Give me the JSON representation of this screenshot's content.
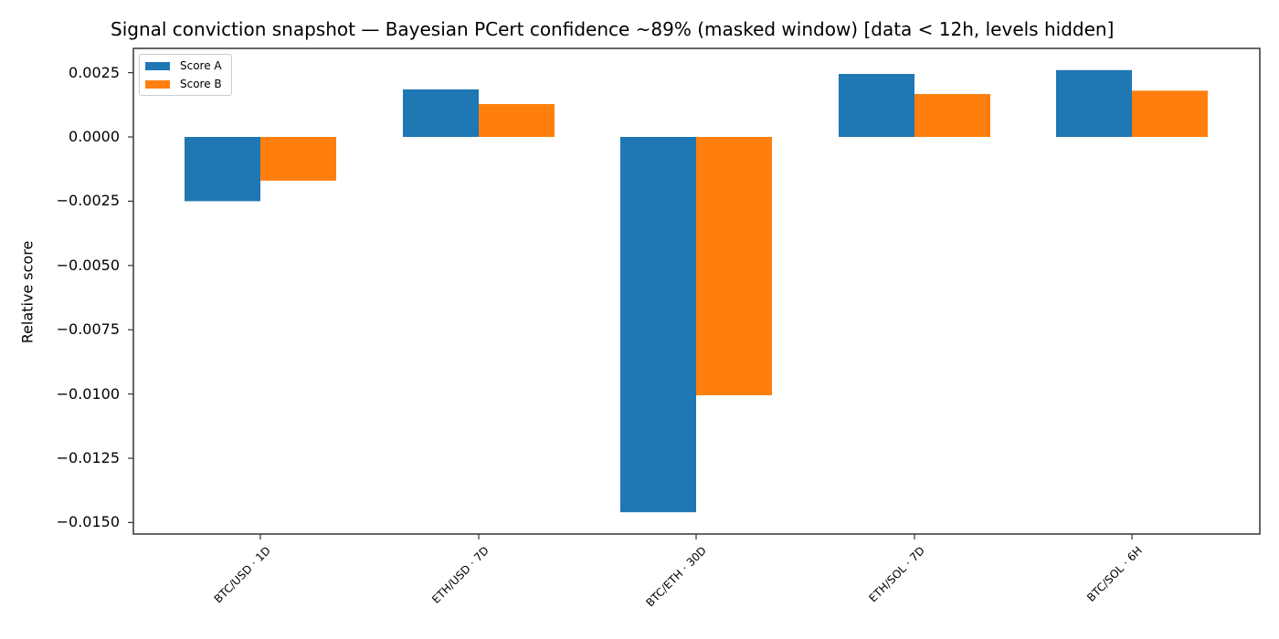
{
  "chart_data": {
    "type": "bar",
    "title": "Signal conviction snapshot — Bayesian PCert confidence ~89% (masked window) [data < 12h, levels hidden]",
    "xlabel": "",
    "ylabel": "Relative score",
    "categories": [
      "BTC/USD · 1D",
      "ETH/USD · 7D",
      "BTC/ETH · 30D",
      "ETH/SOL · 7D",
      "BTC/SOL · 6H"
    ],
    "series": [
      {
        "name": "Score A",
        "color": "#1f77b4",
        "values": [
          -0.0025,
          0.00185,
          -0.0146,
          0.00245,
          0.0026
        ]
      },
      {
        "name": "Score B",
        "color": "#ff7f0e",
        "values": [
          -0.0017,
          0.00128,
          -0.01005,
          0.00167,
          0.0018
        ]
      }
    ],
    "ylim": [
      -0.0155,
      0.0035
    ],
    "yticks": [
      0.0025,
      0.0,
      -0.0025,
      -0.005,
      -0.0075,
      -0.01,
      -0.0125,
      -0.015
    ],
    "ytick_labels": [
      "0.0025",
      "0.0000",
      "−0.0025",
      "−0.0050",
      "−0.0075",
      "−0.0100",
      "−0.0125",
      "−0.0150"
    ],
    "grid": false,
    "legend_position": "upper left"
  },
  "legend": {
    "items": [
      {
        "label": "Score A",
        "color": "#1f77b4"
      },
      {
        "label": "Score B",
        "color": "#ff7f0e"
      }
    ]
  }
}
